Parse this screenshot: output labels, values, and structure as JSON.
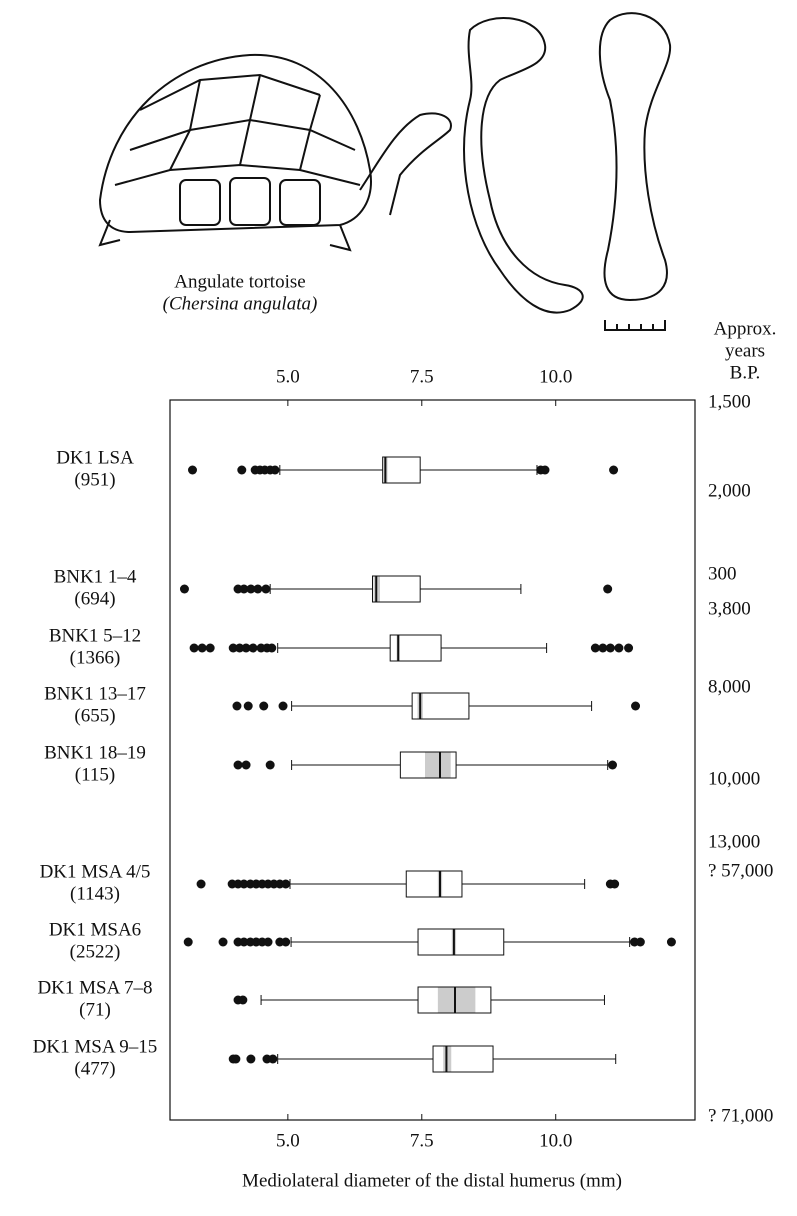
{
  "chart_data": {
    "type": "box",
    "illustration_caption": "Angulate tortoise",
    "illustration_species": "(Chersina angulata)",
    "right_axis_title": [
      "Approx.",
      "years",
      "B.P."
    ],
    "x_label": "Mediolateral diameter of the distal humerus (mm)",
    "xlim": [
      2.8,
      12.6
    ],
    "xticks": [
      {
        "value": 5,
        "label": "5.0"
      },
      {
        "value": 7.5,
        "label": "7.5"
      },
      {
        "value": 10,
        "label": "10.0"
      }
    ],
    "categories": [
      "DK1 LSA",
      "BNK1 1–4",
      "BNK1 5–12",
      "BNK1 13–17",
      "BNK1 18–19",
      "DK1 MSA 4/5",
      "DK1 MSA6",
      "DK1 MSA 7–8",
      "DK1 MSA 9–15"
    ],
    "sample_sizes": [
      "(951)",
      "(694)",
      "(1366)",
      "(655)",
      "(115)",
      "(1143)",
      "(2522)",
      "(71)",
      "(477)"
    ],
    "years": [
      "1,500",
      "2,000",
      "300",
      "3,800",
      "8,000",
      "10,000",
      "13,000",
      "? 57,000",
      "? 71,000"
    ],
    "box_color": "#ffffff",
    "notch_color": "#cccccc",
    "boxes": [
      {
        "whisker_low": 4.85,
        "q1": 6.77,
        "median": 6.82,
        "q3": 7.47,
        "whisker_high": 9.65,
        "notch": [
          6.79,
          6.86
        ],
        "outliers": [
          3.22,
          4.14,
          4.39,
          4.48,
          4.57,
          4.67,
          4.76,
          9.72,
          9.8,
          11.08
        ]
      },
      {
        "whisker_low": 4.67,
        "q1": 6.58,
        "median": 6.65,
        "q3": 7.47,
        "whisker_high": 9.35,
        "notch": [
          6.6,
          6.72
        ],
        "outliers": [
          3.07,
          4.07,
          4.18,
          4.31,
          4.44,
          4.59,
          10.97
        ]
      },
      {
        "whisker_low": 4.81,
        "q1": 6.91,
        "median": 7.06,
        "q3": 7.86,
        "whisker_high": 9.83,
        "notch": [
          7.03,
          7.09
        ],
        "outliers": [
          3.25,
          3.4,
          3.55,
          3.98,
          4.1,
          4.22,
          4.35,
          4.5,
          4.61,
          4.7,
          10.74,
          10.88,
          11.02,
          11.18,
          11.36
        ]
      },
      {
        "whisker_low": 5.07,
        "q1": 7.32,
        "median": 7.47,
        "q3": 8.38,
        "whisker_high": 10.67,
        "notch": [
          7.42,
          7.52
        ],
        "outliers": [
          4.05,
          4.26,
          4.55,
          4.91,
          11.49
        ]
      },
      {
        "whisker_low": 5.07,
        "q1": 7.1,
        "median": 7.84,
        "q3": 8.14,
        "whisker_high": 10.97,
        "notch": [
          7.56,
          8.04
        ],
        "outliers": [
          4.07,
          4.22,
          4.67,
          11.06
        ]
      },
      {
        "whisker_low": 5.04,
        "q1": 7.21,
        "median": 7.84,
        "q3": 8.25,
        "whisker_high": 10.54,
        "notch": [
          7.8,
          7.88
        ],
        "outliers": [
          3.38,
          3.96,
          4.07,
          4.18,
          4.3,
          4.41,
          4.52,
          4.63,
          4.74,
          4.85,
          4.96,
          11.02,
          11.1
        ]
      },
      {
        "whisker_low": 5.06,
        "q1": 7.43,
        "median": 8.1,
        "q3": 9.03,
        "whisker_high": 11.38,
        "notch": [
          8.06,
          8.14
        ],
        "outliers": [
          3.14,
          3.79,
          4.07,
          4.18,
          4.3,
          4.41,
          4.52,
          4.63,
          4.85,
          4.96,
          11.47,
          11.58,
          12.16
        ]
      },
      {
        "whisker_low": 4.5,
        "q1": 7.43,
        "median": 8.12,
        "q3": 8.79,
        "whisker_high": 10.91,
        "notch": [
          7.8,
          8.5
        ],
        "outliers": [
          4.07,
          4.16
        ]
      },
      {
        "whisker_low": 4.81,
        "q1": 7.71,
        "median": 7.96,
        "q3": 8.83,
        "whisker_high": 11.12,
        "notch": [
          7.9,
          8.05
        ],
        "outliers": [
          3.98,
          4.03,
          4.31,
          4.61,
          4.72
        ]
      }
    ]
  }
}
